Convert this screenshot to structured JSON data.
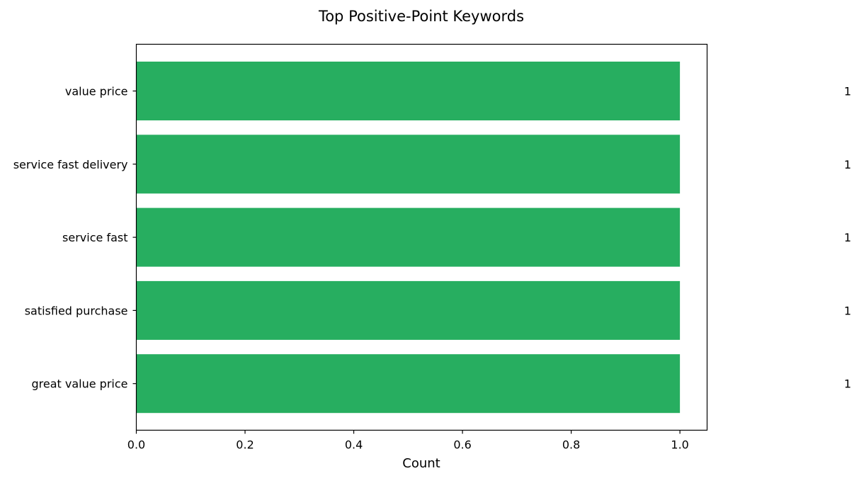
{
  "chart_data": {
    "type": "bar",
    "orientation": "horizontal",
    "title": "Top Positive-Point Keywords",
    "xlabel": "Count",
    "ylabel": "",
    "categories": [
      "value price",
      "service fast delivery",
      "service fast",
      "satisfied purchase",
      "great value price"
    ],
    "values": [
      1,
      1,
      1,
      1,
      1
    ],
    "data_labels": [
      "1",
      "1",
      "1",
      "1",
      "1"
    ],
    "xlim": [
      0,
      1.05
    ],
    "xticks": [
      0.0,
      0.2,
      0.4,
      0.6,
      0.8,
      1.0
    ],
    "xtick_labels": [
      "0.0",
      "0.2",
      "0.4",
      "0.6",
      "0.8",
      "1.0"
    ],
    "bar_color": "#27ae60",
    "grid": false,
    "legend": "none"
  }
}
